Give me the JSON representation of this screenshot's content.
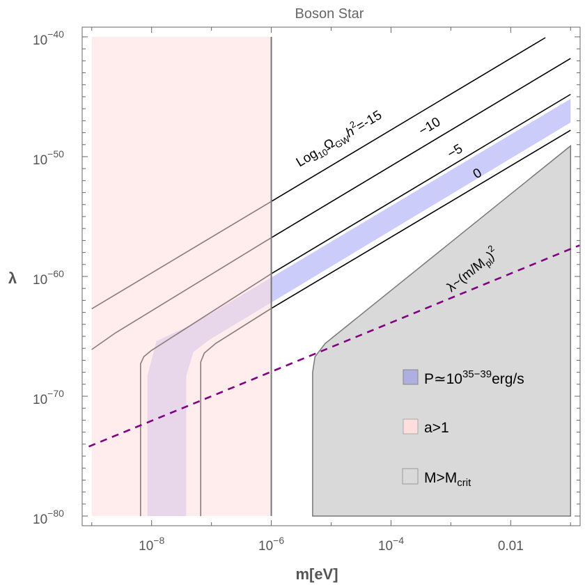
{
  "chart_data": {
    "type": "line",
    "title": "Boson Star",
    "xlabel": "m[eV]",
    "ylabel": "λ",
    "x_scale": "log",
    "y_scale": "log",
    "xlim_log10": [
      -9.16,
      -0.84
    ],
    "ylim_log10": [
      -80.81,
      -39.19
    ],
    "x_ticks": [
      {
        "log10": -8,
        "base": "10",
        "exp": "−8"
      },
      {
        "log10": -6,
        "base": "10",
        "exp": "−6"
      },
      {
        "log10": -4,
        "base": "10",
        "exp": "−4"
      },
      {
        "log10": -2,
        "base": "0.01",
        "exp": ""
      }
    ],
    "y_ticks": [
      {
        "log10": -40,
        "base": "10",
        "exp": "−40"
      },
      {
        "log10": -50,
        "base": "10",
        "exp": "−50"
      },
      {
        "log10": -60,
        "base": "10",
        "exp": "−60"
      },
      {
        "log10": -70,
        "base": "10",
        "exp": "−70"
      },
      {
        "log10": -80,
        "base": "10",
        "exp": "−80"
      }
    ],
    "regions": {
      "a_gt_1": {
        "x": [
          -9,
          -6
        ],
        "y": [
          -80,
          -40
        ],
        "color": "#ffdede"
      },
      "power_band": {
        "color": "#ccccfa",
        "points": [
          [
            -1,
            -45.17
          ],
          [
            -7.28,
            -63.9
          ],
          [
            -7.92,
            -65.4
          ],
          [
            -8.07,
            -68.3
          ],
          [
            -8.07,
            -80
          ],
          [
            -7.42,
            -80
          ],
          [
            -7.42,
            -68.3
          ],
          [
            -7.3,
            -66.3
          ],
          [
            -7.04,
            -65.3
          ],
          [
            -1,
            -47.15
          ]
        ]
      },
      "m_gt_mcrit": {
        "color": "#d9d9d9",
        "points": [
          [
            -1,
            -49.1
          ],
          [
            -5.1,
            -65.6
          ],
          [
            -5.27,
            -66.7
          ],
          [
            -5.31,
            -68.0
          ],
          [
            -5.31,
            -80
          ],
          [
            -1,
            -80
          ]
        ]
      }
    },
    "boundary_line_x": -6,
    "series": [
      {
        "name": "Log10 ΩGW h² = -15",
        "points": [
          [
            -9,
            -62.7
          ],
          [
            -1.42,
            -40.06
          ]
        ]
      },
      {
        "name": "Log10 ΩGW h² = -10",
        "points": [
          [
            -9,
            -66.1
          ],
          [
            -8.6,
            -64.7
          ],
          [
            -6.01,
            -56.8
          ],
          [
            -1,
            -41.8
          ]
        ]
      },
      {
        "name": "Log10 ΩGW h² = -5",
        "points": [
          [
            -8.185,
            -80
          ],
          [
            -8.185,
            -67.3
          ],
          [
            -8.13,
            -66.7
          ],
          [
            -8.01,
            -66.2
          ],
          [
            -6.01,
            -59.8
          ],
          [
            -1,
            -44.8
          ]
        ]
      },
      {
        "name": "Log10 ΩGW h² = 0",
        "points": [
          [
            -7.18,
            -80
          ],
          [
            -7.18,
            -67.15
          ],
          [
            -7.12,
            -66.4
          ],
          [
            -6.93,
            -65.6
          ],
          [
            -6.01,
            -62.7
          ],
          [
            -1,
            -47.8
          ]
        ]
      }
    ],
    "dashed_line": {
      "name": "λ~(m/Mpl)^2",
      "points": [
        [
          -9.05,
          -74.2
        ],
        [
          -0.85,
          -57.4
        ]
      ],
      "color": "#800080"
    },
    "annotations": {
      "gw_main": {
        "prefix": "Log",
        "sub1": "10",
        "omega": "Ω",
        "sub2": "GW",
        "h": "h",
        "sup": "2",
        "suffix": "=-15"
      },
      "gw_m10": "−10",
      "gw_m5": "−5",
      "gw_0": "0",
      "lambda_rel": {
        "prefix": "λ~(m/M",
        "sub": "pl",
        "close": ")",
        "sup": "2"
      }
    },
    "legend": {
      "placement": "bottom-right",
      "items": [
        {
          "text": "P≃10",
          "sup": "35−39",
          "suffix": "erg/s",
          "color": "#aeaee0"
        },
        {
          "text": "a>1",
          "sup": "",
          "suffix": "",
          "color": "#ffdede"
        },
        {
          "text": "M>M",
          "sub": "crit",
          "color": "#d9d9d9"
        }
      ]
    }
  }
}
